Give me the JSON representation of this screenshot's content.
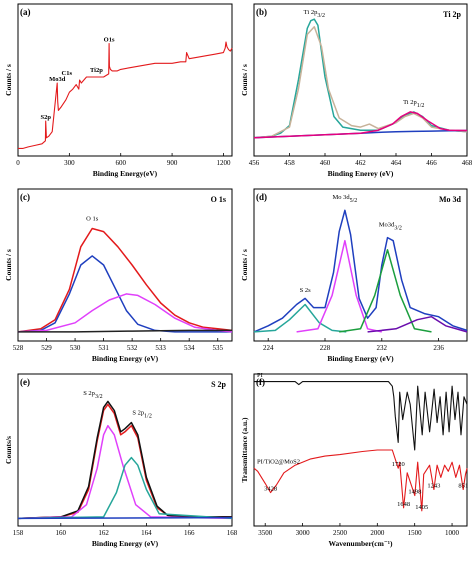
{
  "chart_data": [
    {
      "id": "a",
      "type": "line",
      "panel_label": "(a)",
      "xlabel": "Binding Energy(eV)",
      "ylabel": "Counts / s",
      "xlim": [
        0,
        1250
      ],
      "ylim": [
        0,
        100
      ],
      "xticks": [
        0,
        300,
        600,
        900,
        1200
      ],
      "series": [
        {
          "name": "",
          "color": "#e31a1c",
          "x": [
            0,
            30,
            60,
            100,
            140,
            160,
            162,
            166,
            180,
            200,
            229,
            232,
            236,
            250,
            280,
            300,
            320,
            340,
            355,
            360,
            370,
            400,
            450,
            500,
            530,
            532,
            534,
            540,
            550,
            560,
            580,
            600,
            650,
            700,
            750,
            800,
            850,
            900,
            950,
            980,
            985,
            1000,
            1050,
            1100,
            1150,
            1200,
            1210,
            1215,
            1220,
            1230,
            1240,
            1250
          ],
          "y": [
            5,
            5,
            6,
            7,
            8,
            10,
            23,
            12,
            13,
            16,
            48,
            36,
            30,
            32,
            37,
            42,
            44,
            47,
            44,
            50,
            48,
            52,
            52,
            52,
            54,
            74,
            59,
            57,
            56,
            56,
            56,
            57,
            58,
            59,
            60,
            61,
            61,
            61,
            62,
            62,
            68,
            64,
            65,
            66,
            67,
            68,
            71,
            75,
            72,
            70,
            69,
            71
          ]
        }
      ],
      "annotations": [
        {
          "text": "S2p",
          "x": 162,
          "y": 23
        },
        {
          "text": "Mo3d",
          "x": 229,
          "y": 48
        },
        {
          "text": "C1s",
          "x": 285,
          "y": 52
        },
        {
          "text": "Ti2p",
          "x": 458,
          "y": 54
        },
        {
          "text": "O1s",
          "x": 532,
          "y": 74
        }
      ]
    },
    {
      "id": "b",
      "type": "line",
      "panel_label": "(b)",
      "title": "Ti 2p",
      "xlabel": "Binding Enerey (eV)",
      "ylabel": "Counts / s",
      "xlim": [
        456,
        468
      ],
      "ylim": [
        0,
        100
      ],
      "xticks": [
        456,
        458,
        460,
        462,
        464,
        466,
        468
      ],
      "series": [
        {
          "name": "",
          "color": "#26a69a",
          "x": [
            456,
            457,
            457.5,
            458,
            458.5,
            459,
            459.2,
            459.4,
            459.6,
            460,
            460.5,
            461,
            462,
            463,
            464,
            464.5,
            465,
            465.5,
            466,
            467,
            468
          ],
          "y": [
            12,
            13,
            15,
            20,
            50,
            84,
            89,
            90,
            86,
            52,
            26,
            19,
            17,
            17,
            22,
            27,
            29,
            26,
            20,
            17,
            16
          ]
        },
        {
          "name": "",
          "color": "#c7b299",
          "x": [
            456,
            457,
            458,
            458.5,
            459,
            459.4,
            459.8,
            460.2,
            460.8,
            461.5,
            462,
            462.5,
            463,
            464,
            464.5,
            465,
            465.5,
            466,
            467,
            468
          ],
          "y": [
            12,
            13,
            19,
            44,
            80,
            85,
            72,
            44,
            25,
            20,
            19,
            21,
            18,
            22,
            26,
            28,
            25,
            19,
            17,
            16
          ]
        },
        {
          "name": "",
          "color": "#1f3fbf",
          "x": [
            456,
            457,
            458,
            459,
            460,
            461,
            462,
            463,
            464,
            465,
            466,
            467,
            468
          ],
          "y": [
            12,
            12.5,
            13,
            13.5,
            14,
            14.5,
            15,
            15.5,
            16,
            16.2,
            16.4,
            16.6,
            16.8
          ]
        },
        {
          "name": "",
          "color": "#e6007e",
          "x": [
            456,
            458,
            460,
            462,
            463,
            463.8,
            464.3,
            464.8,
            465.2,
            465.8,
            466.5,
            467,
            468
          ],
          "y": [
            12,
            13,
            14,
            15,
            17,
            21,
            26,
            29,
            28,
            23,
            18,
            17,
            16.8
          ]
        }
      ],
      "annotations": [
        {
          "text": "Ti 2p3/2",
          "x": 459.4,
          "y": 92
        },
        {
          "text": "Ti 2p1/2",
          "x": 465,
          "y": 33
        }
      ]
    },
    {
      "id": "c",
      "type": "line",
      "panel_label": "(c)",
      "title": "O 1s",
      "xlabel": "Binding Energy (eV)",
      "ylabel": "Counts / s",
      "xlim": [
        528,
        535.5
      ],
      "ylim": [
        0,
        100
      ],
      "xticks": [
        528,
        529,
        530,
        531,
        532,
        533,
        534,
        535
      ],
      "series": [
        {
          "name": "",
          "color": "#e31a1c",
          "x": [
            528,
            528.8,
            529.3,
            529.8,
            530.2,
            530.6,
            531,
            531.5,
            532,
            532.5,
            533,
            533.5,
            534,
            534.5,
            535,
            535.5
          ],
          "y": [
            6,
            8,
            14,
            34,
            62,
            74,
            72,
            62,
            50,
            37,
            25,
            17,
            12,
            9,
            8,
            7
          ]
        },
        {
          "name": "",
          "color": "#1f3fbf",
          "x": [
            528,
            528.8,
            529.3,
            529.8,
            530.2,
            530.6,
            531,
            531.4,
            531.8,
            532.2,
            532.8,
            533.5,
            535.5
          ],
          "y": [
            6,
            7,
            12,
            31,
            50,
            56,
            50,
            35,
            20,
            11,
            7,
            6,
            6
          ]
        },
        {
          "name": "",
          "color": "#e040fb",
          "x": [
            528,
            529,
            530,
            530.6,
            531.2,
            531.8,
            532.2,
            532.8,
            533.5,
            534.2,
            535,
            535.5
          ],
          "y": [
            6,
            7,
            12,
            20,
            27,
            31,
            30,
            24,
            15,
            9,
            7,
            6
          ]
        },
        {
          "name": "",
          "color": "#222222",
          "x": [
            528,
            530,
            532,
            534,
            535.5
          ],
          "y": [
            6,
            6,
            6.5,
            7,
            7
          ]
        }
      ],
      "annotations": [
        {
          "text": "O 1s",
          "x": 530.6,
          "y": 78
        }
      ]
    },
    {
      "id": "d",
      "type": "line",
      "panel_label": "(d)",
      "title": "Mo 3d",
      "xlabel": "Binding Energy (eV)",
      "ylabel": "Counts / s",
      "xlim": [
        223,
        238
      ],
      "ylim": [
        0,
        100
      ],
      "xticks": [
        224,
        228,
        232,
        236
      ],
      "series": [
        {
          "name": "",
          "color": "#1f3fbf",
          "x": [
            223,
            224,
            225,
            226,
            226.6,
            227.2,
            228,
            228.6,
            229,
            229.4,
            229.8,
            230.4,
            231,
            231.6,
            232,
            232.4,
            232.8,
            233.4,
            234,
            235,
            236,
            237,
            238
          ],
          "y": [
            6,
            10,
            15,
            24,
            28,
            22,
            22,
            45,
            72,
            86,
            70,
            28,
            15,
            22,
            50,
            68,
            66,
            40,
            22,
            18,
            16,
            10,
            7
          ]
        },
        {
          "name": "",
          "color": "#26a69a",
          "x": [
            223,
            224.5,
            225.5,
            226.6,
            227.6,
            228.5,
            229.5
          ],
          "y": [
            6,
            7,
            14,
            24,
            12,
            7,
            6
          ]
        },
        {
          "name": "",
          "color": "#e040fb",
          "x": [
            226,
            227.5,
            228.5,
            229.4,
            230.2,
            231,
            232
          ],
          "y": [
            6,
            8,
            30,
            66,
            30,
            8,
            6
          ]
        },
        {
          "name": "",
          "color": "#1b9e3e",
          "x": [
            229,
            230.5,
            231.5,
            232.4,
            233.3,
            234.3,
            235.5
          ],
          "y": [
            6,
            8,
            30,
            60,
            30,
            8,
            6
          ]
        },
        {
          "name": "",
          "color": "#6a0dad",
          "x": [
            231,
            233,
            234.5,
            235.5,
            236.5,
            238
          ],
          "y": [
            6,
            8,
            14,
            16,
            10,
            6
          ]
        }
      ],
      "annotations": [
        {
          "text": "S 2s",
          "x": 226.6,
          "y": 31
        },
        {
          "text": "Mo 3d5/2",
          "x": 229.4,
          "y": 92
        },
        {
          "text": "Mo3d3/2",
          "x": 232.6,
          "y": 74
        }
      ]
    },
    {
      "id": "e",
      "type": "line",
      "panel_label": "(e)",
      "title": "S 2p",
      "xlabel": "Binding Energy (eV)",
      "ylabel": "Counts/s",
      "xlim": [
        158,
        168
      ],
      "ylim": [
        0,
        100
      ],
      "xticks": [
        158,
        160,
        162,
        164,
        166,
        168
      ],
      "series": [
        {
          "name": "",
          "color": "#e31a1c",
          "x": [
            158,
            160,
            160.8,
            161.3,
            161.7,
            162,
            162.2,
            162.5,
            162.8,
            163,
            163.3,
            163.6,
            164,
            164.5,
            165,
            166,
            168
          ],
          "y": [
            5,
            6,
            9,
            24,
            56,
            76,
            80,
            74,
            60,
            62,
            66,
            58,
            30,
            12,
            7,
            6,
            6
          ]
        },
        {
          "name": "",
          "color": "#111111",
          "x": [
            158,
            160,
            160.8,
            161.3,
            161.7,
            162,
            162.2,
            162.5,
            162.8,
            163,
            163.3,
            163.6,
            164,
            164.5,
            165,
            166,
            168
          ],
          "y": [
            5,
            6,
            10,
            26,
            58,
            78,
            82,
            76,
            62,
            64,
            68,
            60,
            32,
            13,
            7,
            6,
            6
          ]
        },
        {
          "name": "",
          "color": "#e040fb",
          "x": [
            158,
            160.5,
            161.2,
            161.7,
            162,
            162.2,
            162.5,
            162.9,
            163.5,
            164.2,
            168
          ],
          "y": [
            5,
            6,
            14,
            38,
            60,
            66,
            60,
            40,
            14,
            6,
            5
          ]
        },
        {
          "name": "",
          "color": "#26a69a",
          "x": [
            158,
            162,
            162.6,
            163,
            163.3,
            163.6,
            164,
            164.6,
            168
          ],
          "y": [
            5,
            6,
            22,
            40,
            45,
            40,
            24,
            8,
            5
          ]
        },
        {
          "name": "",
          "color": "#1f3fbf",
          "x": [
            158,
            168
          ],
          "y": [
            5,
            5.5
          ]
        }
      ],
      "annotations": [
        {
          "text": "S 2p3/2",
          "x": 161.5,
          "y": 85
        },
        {
          "text": "S 2p1/2",
          "x": 163.8,
          "y": 72
        }
      ]
    },
    {
      "id": "f",
      "type": "line",
      "panel_label": "(f)",
      "xlabel": "Wavenumber(cm⁻¹)",
      "ylabel": "Transmittance (a.u.)",
      "xlim": [
        3650,
        800
      ],
      "ylim": [
        0,
        100
      ],
      "xticks": [
        3500,
        3000,
        2500,
        2000,
        1500,
        1000
      ],
      "series": [
        {
          "name": "PI",
          "color": "#111111",
          "x": [
            3650,
            3300,
            3100,
            3050,
            3000,
            2500,
            1850,
            1800,
            1780,
            1760,
            1720,
            1700,
            1660,
            1600,
            1560,
            1500,
            1460,
            1400,
            1360,
            1300,
            1240,
            1200,
            1160,
            1120,
            1080,
            1040,
            1000,
            960,
            920,
            880,
            840,
            800
          ],
          "y": [
            95,
            95,
            95,
            93,
            95,
            95,
            95,
            92,
            85,
            72,
            55,
            88,
            70,
            88,
            80,
            50,
            92,
            60,
            88,
            62,
            90,
            68,
            85,
            60,
            88,
            62,
            92,
            70,
            88,
            60,
            85,
            80
          ]
        },
        {
          "name": "PI/TiO2@MoS2",
          "color": "#e31a1c",
          "x": [
            3650,
            3600,
            3500,
            3428,
            3350,
            3250,
            3100,
            2900,
            2700,
            2500,
            2200,
            2000,
            1800,
            1720,
            1700,
            1648,
            1600,
            1498,
            1460,
            1405,
            1380,
            1300,
            1243,
            1200,
            1150,
            1100,
            1050,
            1000,
            950,
            900,
            851,
            820,
            800
          ],
          "y": [
            38,
            36,
            28,
            22,
            27,
            35,
            40,
            44,
            46,
            47,
            49,
            50,
            50,
            38,
            42,
            12,
            35,
            20,
            42,
            10,
            34,
            40,
            24,
            40,
            32,
            40,
            36,
            42,
            32,
            40,
            24,
            34,
            38
          ]
        }
      ],
      "annotations": [
        {
          "text": "3428",
          "x": 3428,
          "y": 22
        },
        {
          "text": "1720",
          "x": 1720,
          "y": 38
        },
        {
          "text": "1648",
          "x": 1648,
          "y": 12
        },
        {
          "text": "1498",
          "x": 1498,
          "y": 20
        },
        {
          "text": "1405",
          "x": 1405,
          "y": 10
        },
        {
          "text": "1243",
          "x": 1243,
          "y": 24
        },
        {
          "text": "851",
          "x": 851,
          "y": 24
        }
      ]
    }
  ]
}
